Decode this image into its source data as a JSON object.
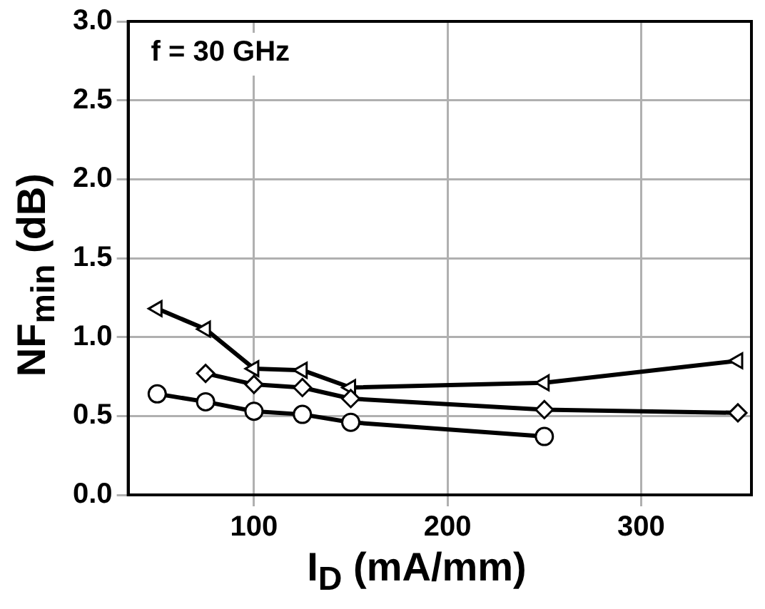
{
  "chart_data": {
    "type": "line",
    "xlabel": "I$_{D}$ (mA/mm)",
    "ylabel": "NF$_{min}$ (dB)",
    "annotations": [
      "f = 30 GHz"
    ],
    "xlim": [
      35,
      357
    ],
    "xticks": [
      100,
      200,
      300
    ],
    "ylim": [
      0,
      3
    ],
    "yticks": [
      {
        "value": 0,
        "label": "0.0"
      },
      0.5,
      {
        "value": 1,
        "label": "1.0"
      },
      1.5,
      {
        "value": 2,
        "label": "2.0"
      },
      2.5,
      {
        "value": 3,
        "label": "3.0"
      }
    ],
    "grid": true,
    "line_style": "solid",
    "series": [
      {
        "color": "#000000",
        "marker": "diamond",
        "x": [
          75,
          100,
          125,
          150,
          250,
          350
        ],
        "values": [
          0.77,
          0.7,
          0.68,
          0.61,
          0.54,
          0.52
        ]
      },
      {
        "color": "#000000",
        "marker": "circle",
        "x": [
          50,
          75,
          100,
          125,
          150,
          250
        ],
        "values": [
          0.64,
          0.59,
          0.53,
          0.51,
          0.46,
          0.37
        ]
      },
      {
        "color": "#000000",
        "marker": "triangle",
        "x": [
          50,
          75,
          100,
          125,
          150,
          250,
          350
        ],
        "values": [
          1.18,
          1.05,
          0.8,
          0.79,
          0.68,
          0.71,
          0.85
        ]
      }
    ]
  }
}
